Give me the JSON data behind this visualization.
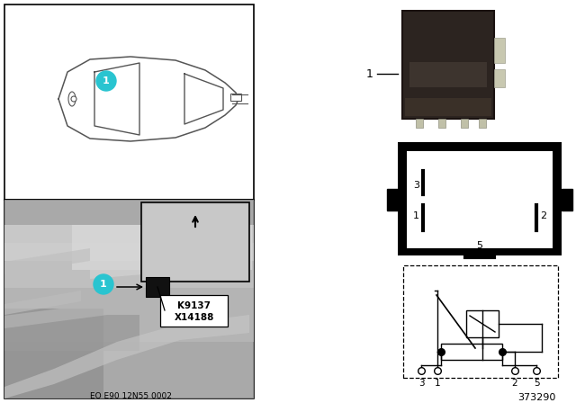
{
  "bg_color": "#ffffff",
  "footer_text": "EO E90 12N55 0002",
  "part_number": "373290",
  "k_label": "K9137",
  "x_label": "X14188",
  "cyan_color": "#29C4D0",
  "gray_photo": "#b8b8b8",
  "dark_relay": "#2a2420",
  "photo_gray": "#c0c0c0",
  "inset_gray": "#c8c8c8"
}
